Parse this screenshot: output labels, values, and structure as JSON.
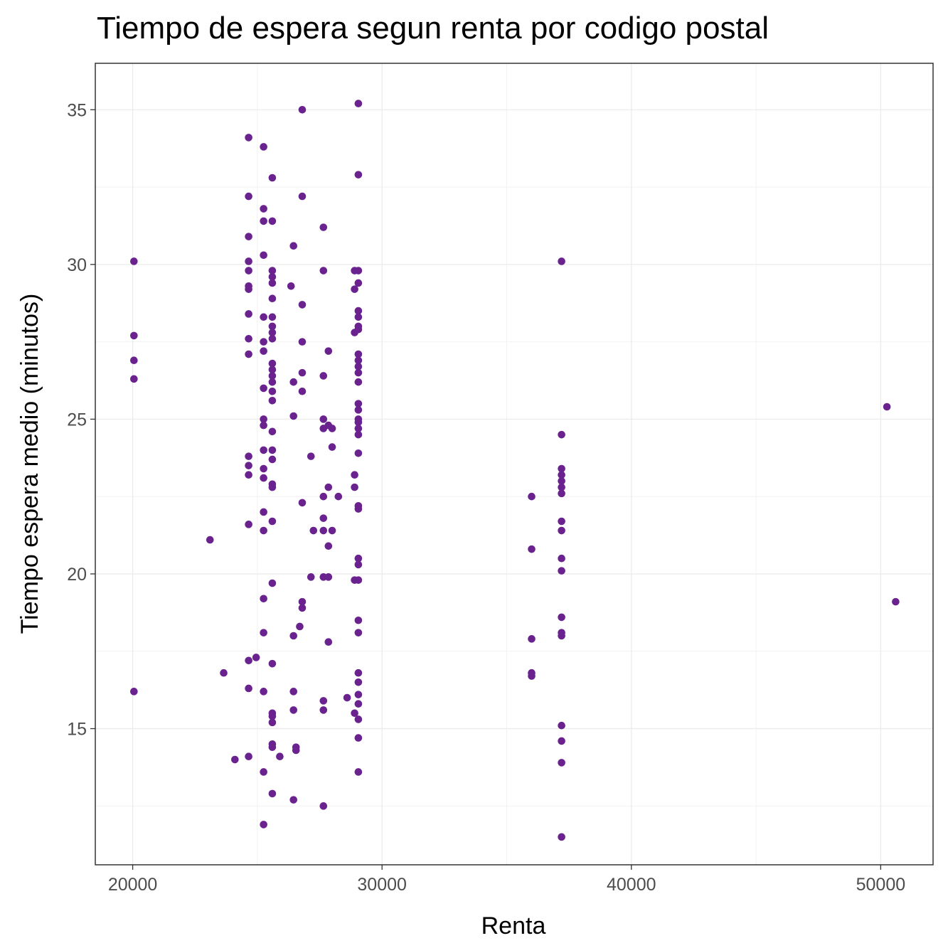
{
  "chart_data": {
    "type": "scatter",
    "title": "Tiempo de espera segun renta por codigo postal",
    "xlabel": "Renta",
    "ylabel": "Tiempo espera medio (minutos)",
    "xlim": [
      18500,
      52100
    ],
    "ylim": [
      10.6,
      36.5
    ],
    "x_ticks": [
      20000,
      30000,
      40000,
      50000
    ],
    "y_ticks": [
      15,
      20,
      25,
      30,
      35
    ],
    "grid": true,
    "point_color": "#6a228f",
    "points": [
      [
        20050,
        30.1
      ],
      [
        20050,
        27.7
      ],
      [
        20050,
        26.9
      ],
      [
        20050,
        26.3
      ],
      [
        20050,
        16.2
      ],
      [
        23100,
        21.1
      ],
      [
        23650,
        16.8
      ],
      [
        24100,
        14.0
      ],
      [
        24650,
        34.1
      ],
      [
        24650,
        32.2
      ],
      [
        24650,
        30.9
      ],
      [
        24650,
        30.1
      ],
      [
        24650,
        29.8
      ],
      [
        24650,
        29.3
      ],
      [
        24650,
        29.2
      ],
      [
        24650,
        28.4
      ],
      [
        24650,
        27.6
      ],
      [
        24650,
        27.1
      ],
      [
        24650,
        23.8
      ],
      [
        24650,
        23.5
      ],
      [
        24650,
        23.2
      ],
      [
        24650,
        21.6
      ],
      [
        24650,
        17.2
      ],
      [
        24650,
        16.3
      ],
      [
        24650,
        14.1
      ],
      [
        24950,
        17.3
      ],
      [
        25250,
        33.8
      ],
      [
        25250,
        31.8
      ],
      [
        25250,
        31.4
      ],
      [
        25250,
        30.3
      ],
      [
        25250,
        28.3
      ],
      [
        25250,
        27.5
      ],
      [
        25250,
        27.2
      ],
      [
        25250,
        26.0
      ],
      [
        25250,
        25.0
      ],
      [
        25250,
        24.8
      ],
      [
        25250,
        24.0
      ],
      [
        25250,
        23.4
      ],
      [
        25250,
        23.1
      ],
      [
        25250,
        22.0
      ],
      [
        25250,
        21.4
      ],
      [
        25250,
        19.2
      ],
      [
        25250,
        18.1
      ],
      [
        25250,
        16.2
      ],
      [
        25250,
        13.6
      ],
      [
        25250,
        11.9
      ],
      [
        25600,
        32.8
      ],
      [
        25600,
        31.4
      ],
      [
        25600,
        29.8
      ],
      [
        25600,
        29.6
      ],
      [
        25600,
        29.4
      ],
      [
        25600,
        28.9
      ],
      [
        25600,
        28.3
      ],
      [
        25600,
        28.0
      ],
      [
        25600,
        27.8
      ],
      [
        25600,
        27.6
      ],
      [
        25600,
        26.8
      ],
      [
        25600,
        26.6
      ],
      [
        25600,
        26.4
      ],
      [
        25600,
        26.2
      ],
      [
        25600,
        25.9
      ],
      [
        25600,
        25.6
      ],
      [
        25600,
        24.6
      ],
      [
        25600,
        24.0
      ],
      [
        25600,
        23.7
      ],
      [
        25600,
        22.9
      ],
      [
        25600,
        22.8
      ],
      [
        25600,
        21.7
      ],
      [
        25600,
        19.7
      ],
      [
        25600,
        17.1
      ],
      [
        25600,
        15.5
      ],
      [
        25600,
        15.4
      ],
      [
        25600,
        15.2
      ],
      [
        25600,
        14.5
      ],
      [
        25600,
        14.4
      ],
      [
        25600,
        12.9
      ],
      [
        25900,
        14.1
      ],
      [
        26350,
        29.3
      ],
      [
        26450,
        30.6
      ],
      [
        26450,
        26.2
      ],
      [
        26450,
        25.1
      ],
      [
        26450,
        18.0
      ],
      [
        26450,
        16.2
      ],
      [
        26450,
        15.6
      ],
      [
        26450,
        12.7
      ],
      [
        26550,
        14.4
      ],
      [
        26550,
        14.3
      ],
      [
        26700,
        18.3
      ],
      [
        26800,
        35.0
      ],
      [
        26800,
        32.2
      ],
      [
        26800,
        28.7
      ],
      [
        26800,
        27.5
      ],
      [
        26800,
        26.5
      ],
      [
        26800,
        25.9
      ],
      [
        26800,
        22.3
      ],
      [
        26800,
        19.1
      ],
      [
        26800,
        18.9
      ],
      [
        27150,
        19.9
      ],
      [
        27150,
        23.8
      ],
      [
        27250,
        21.4
      ],
      [
        27650,
        31.2
      ],
      [
        27650,
        29.8
      ],
      [
        27650,
        26.4
      ],
      [
        27650,
        25.0
      ],
      [
        27650,
        24.7
      ],
      [
        27650,
        22.5
      ],
      [
        27650,
        21.8
      ],
      [
        27650,
        21.4
      ],
      [
        27650,
        19.9
      ],
      [
        27650,
        15.9
      ],
      [
        27650,
        15.6
      ],
      [
        27650,
        12.5
      ],
      [
        27850,
        27.2
      ],
      [
        27850,
        24.8
      ],
      [
        27850,
        22.8
      ],
      [
        27850,
        20.9
      ],
      [
        27850,
        19.9
      ],
      [
        27850,
        17.8
      ],
      [
        28000,
        24.7
      ],
      [
        28000,
        24.1
      ],
      [
        28000,
        21.4
      ],
      [
        28250,
        22.5
      ],
      [
        28600,
        16.0
      ],
      [
        28900,
        29.8
      ],
      [
        28900,
        29.2
      ],
      [
        28900,
        27.8
      ],
      [
        28900,
        23.2
      ],
      [
        28900,
        22.8
      ],
      [
        28900,
        19.8
      ],
      [
        28900,
        15.5
      ],
      [
        29050,
        35.2
      ],
      [
        29050,
        32.9
      ],
      [
        29050,
        29.8
      ],
      [
        29050,
        29.4
      ],
      [
        29050,
        28.5
      ],
      [
        29050,
        28.3
      ],
      [
        29050,
        28.0
      ],
      [
        29050,
        27.9
      ],
      [
        29050,
        27.1
      ],
      [
        29050,
        26.9
      ],
      [
        29050,
        26.7
      ],
      [
        29050,
        26.5
      ],
      [
        29050,
        26.2
      ],
      [
        29050,
        25.5
      ],
      [
        29050,
        25.3
      ],
      [
        29050,
        25.0
      ],
      [
        29050,
        24.9
      ],
      [
        29050,
        24.7
      ],
      [
        29050,
        24.5
      ],
      [
        29050,
        23.9
      ],
      [
        29050,
        22.2
      ],
      [
        29050,
        22.1
      ],
      [
        29050,
        20.5
      ],
      [
        29050,
        20.3
      ],
      [
        29050,
        19.8
      ],
      [
        29050,
        18.5
      ],
      [
        29050,
        18.1
      ],
      [
        29050,
        16.8
      ],
      [
        29050,
        16.5
      ],
      [
        29050,
        16.1
      ],
      [
        29050,
        15.8
      ],
      [
        29050,
        15.3
      ],
      [
        29050,
        14.7
      ],
      [
        29050,
        13.6
      ],
      [
        36000,
        22.5
      ],
      [
        36000,
        20.8
      ],
      [
        36000,
        17.9
      ],
      [
        36000,
        16.8
      ],
      [
        36000,
        16.7
      ],
      [
        37200,
        30.1
      ],
      [
        37200,
        24.5
      ],
      [
        37200,
        23.4
      ],
      [
        37200,
        23.2
      ],
      [
        37200,
        23.0
      ],
      [
        37200,
        22.8
      ],
      [
        37200,
        22.6
      ],
      [
        37200,
        21.7
      ],
      [
        37200,
        21.4
      ],
      [
        37200,
        20.5
      ],
      [
        37200,
        20.1
      ],
      [
        37200,
        18.6
      ],
      [
        37200,
        18.1
      ],
      [
        37200,
        18.0
      ],
      [
        37200,
        15.1
      ],
      [
        37200,
        14.6
      ],
      [
        37200,
        13.9
      ],
      [
        37200,
        11.5
      ],
      [
        50250,
        25.4
      ],
      [
        50600,
        19.1
      ]
    ]
  }
}
